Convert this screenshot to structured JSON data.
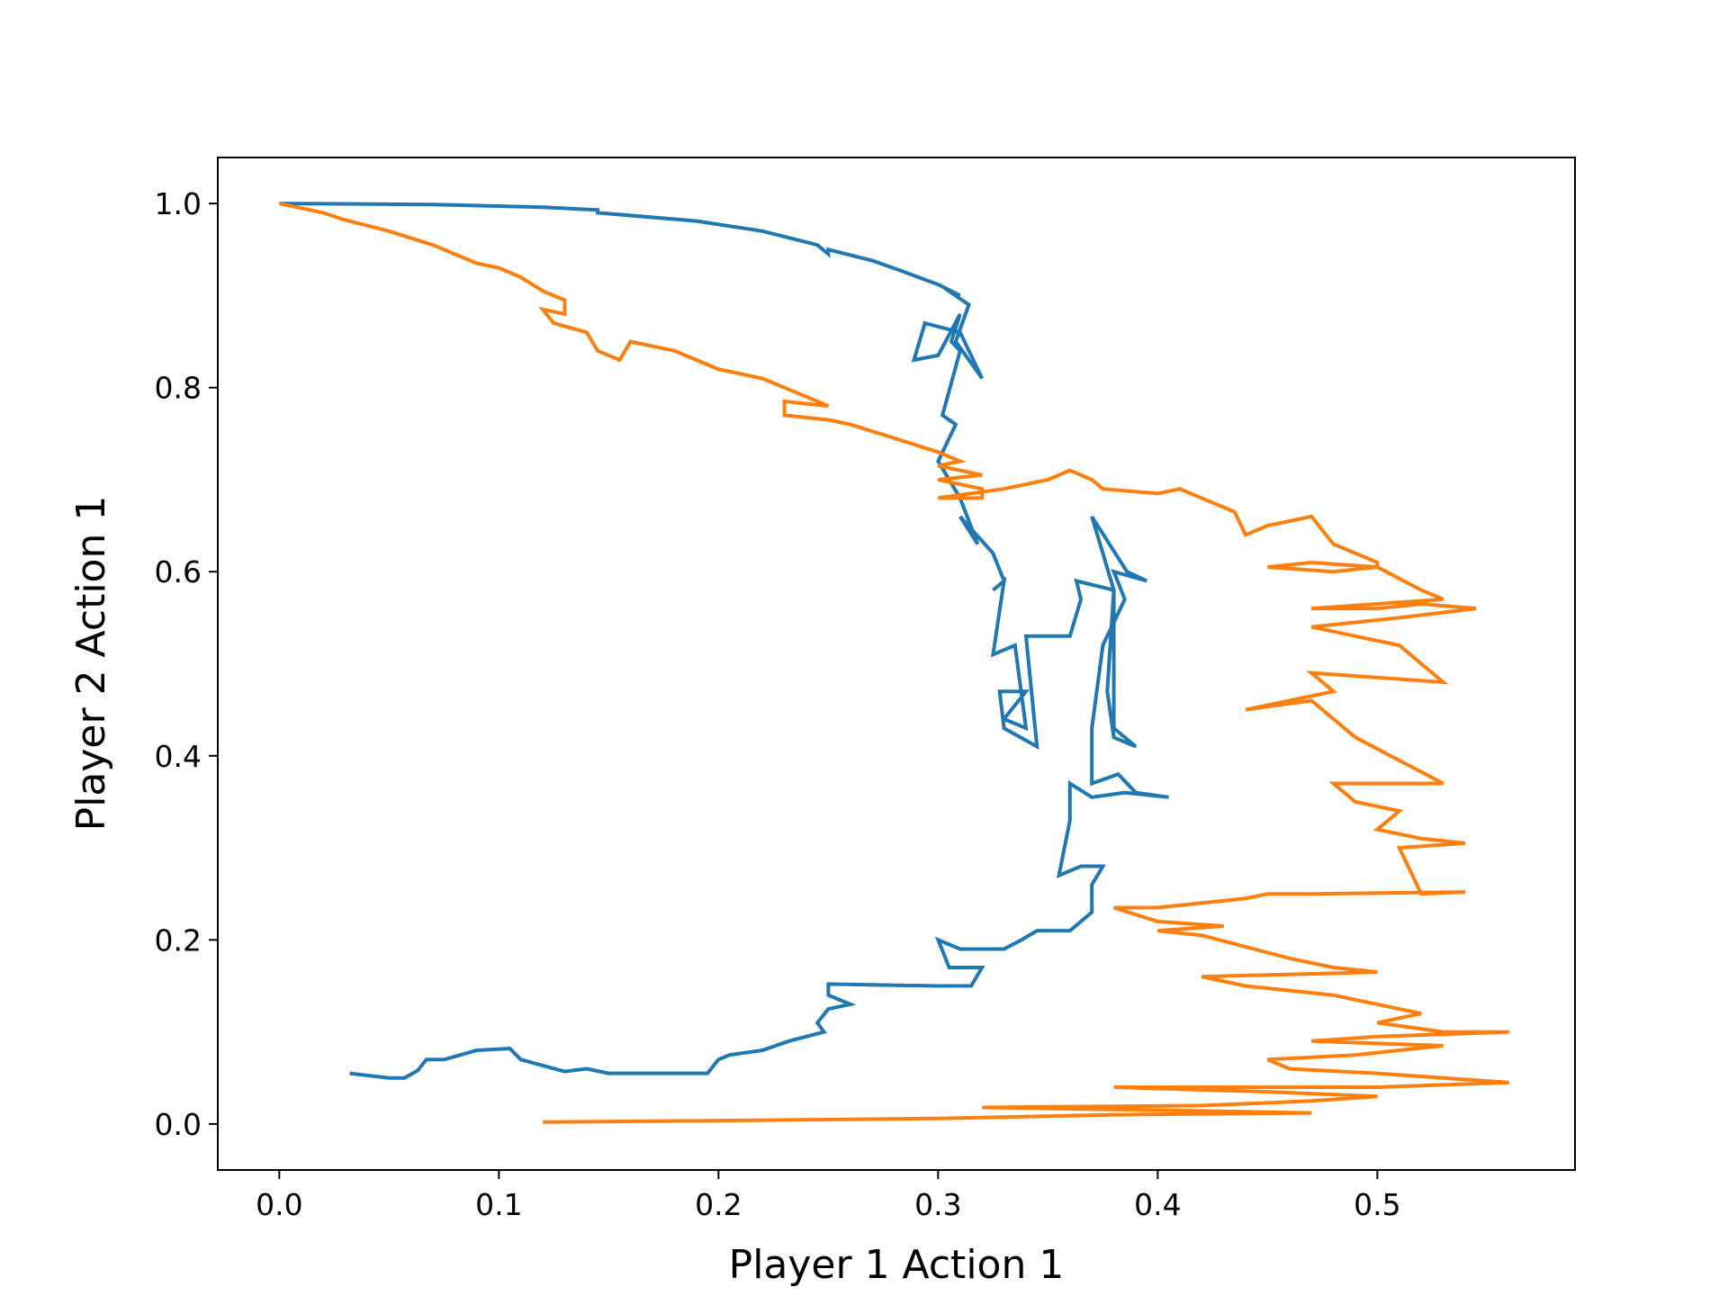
{
  "chart_data": {
    "type": "line",
    "xlabel": "Player 1 Action 1",
    "ylabel": "Player 2 Action 1",
    "xlim": [
      -0.028,
      0.59
    ],
    "ylim": [
      -0.05,
      1.05
    ],
    "xticks": [
      "0.0",
      "0.1",
      "0.2",
      "0.3",
      "0.4",
      "0.5"
    ],
    "xtick_values": [
      0.0,
      0.1,
      0.2,
      0.3,
      0.4,
      0.5
    ],
    "yticks": [
      "0.0",
      "0.2",
      "0.4",
      "0.6",
      "0.8",
      "1.0"
    ],
    "ytick_values": [
      0.0,
      0.2,
      0.4,
      0.6,
      0.8,
      1.0
    ],
    "grid": false,
    "legend": "none",
    "series": [
      {
        "color": "#1f77b4",
        "points": [
          [
            0.0,
            1.0
          ],
          [
            0.07,
            0.999
          ],
          [
            0.12,
            0.996
          ],
          [
            0.145,
            0.993
          ],
          [
            0.145,
            0.99
          ],
          [
            0.19,
            0.981
          ],
          [
            0.22,
            0.97
          ],
          [
            0.245,
            0.955
          ],
          [
            0.25,
            0.945
          ],
          [
            0.25,
            0.95
          ],
          [
            0.27,
            0.938
          ],
          [
            0.283,
            0.927
          ],
          [
            0.3,
            0.912
          ],
          [
            0.31,
            0.9
          ],
          [
            0.303,
            0.908
          ],
          [
            0.314,
            0.89
          ],
          [
            0.308,
            0.85
          ],
          [
            0.32,
            0.81
          ],
          [
            0.31,
            0.86
          ],
          [
            0.294,
            0.87
          ],
          [
            0.289,
            0.83
          ],
          [
            0.3,
            0.835
          ],
          [
            0.31,
            0.88
          ],
          [
            0.306,
            0.85
          ],
          [
            0.31,
            0.84
          ],
          [
            0.302,
            0.77
          ],
          [
            0.308,
            0.76
          ],
          [
            0.3,
            0.72
          ],
          [
            0.31,
            0.68
          ],
          [
            0.318,
            0.63
          ],
          [
            0.31,
            0.66
          ],
          [
            0.325,
            0.62
          ],
          [
            0.33,
            0.59
          ],
          [
            0.325,
            0.58
          ],
          [
            0.33,
            0.59
          ],
          [
            0.325,
            0.51
          ],
          [
            0.335,
            0.52
          ],
          [
            0.34,
            0.43
          ],
          [
            0.33,
            0.44
          ],
          [
            0.34,
            0.47
          ],
          [
            0.328,
            0.47
          ],
          [
            0.33,
            0.43
          ],
          [
            0.345,
            0.41
          ],
          [
            0.34,
            0.53
          ],
          [
            0.36,
            0.53
          ],
          [
            0.365,
            0.57
          ],
          [
            0.363,
            0.59
          ],
          [
            0.38,
            0.58
          ],
          [
            0.377,
            0.47
          ],
          [
            0.38,
            0.42
          ],
          [
            0.39,
            0.41
          ],
          [
            0.38,
            0.43
          ],
          [
            0.38,
            0.5
          ],
          [
            0.38,
            0.54
          ],
          [
            0.38,
            0.58
          ],
          [
            0.37,
            0.66
          ],
          [
            0.386,
            0.6
          ],
          [
            0.395,
            0.59
          ],
          [
            0.38,
            0.6
          ],
          [
            0.385,
            0.57
          ],
          [
            0.375,
            0.52
          ],
          [
            0.37,
            0.43
          ],
          [
            0.37,
            0.37
          ],
          [
            0.382,
            0.38
          ],
          [
            0.39,
            0.36
          ],
          [
            0.405,
            0.355
          ],
          [
            0.385,
            0.36
          ],
          [
            0.37,
            0.355
          ],
          [
            0.36,
            0.37
          ],
          [
            0.36,
            0.33
          ],
          [
            0.355,
            0.27
          ],
          [
            0.365,
            0.28
          ],
          [
            0.375,
            0.28
          ],
          [
            0.37,
            0.26
          ],
          [
            0.37,
            0.23
          ],
          [
            0.36,
            0.21
          ],
          [
            0.345,
            0.21
          ],
          [
            0.338,
            0.2
          ],
          [
            0.33,
            0.19
          ],
          [
            0.31,
            0.19
          ],
          [
            0.3,
            0.2
          ],
          [
            0.305,
            0.17
          ],
          [
            0.32,
            0.17
          ],
          [
            0.315,
            0.15
          ],
          [
            0.3,
            0.15
          ],
          [
            0.25,
            0.152
          ],
          [
            0.25,
            0.14
          ],
          [
            0.26,
            0.13
          ],
          [
            0.25,
            0.125
          ],
          [
            0.245,
            0.11
          ],
          [
            0.248,
            0.1
          ],
          [
            0.232,
            0.09
          ],
          [
            0.22,
            0.08
          ],
          [
            0.205,
            0.075
          ],
          [
            0.2,
            0.07
          ],
          [
            0.195,
            0.055
          ],
          [
            0.15,
            0.055
          ],
          [
            0.14,
            0.06
          ],
          [
            0.13,
            0.057
          ],
          [
            0.11,
            0.07
          ],
          [
            0.105,
            0.082
          ],
          [
            0.09,
            0.08
          ],
          [
            0.075,
            0.07
          ],
          [
            0.067,
            0.07
          ],
          [
            0.063,
            0.058
          ],
          [
            0.057,
            0.05
          ],
          [
            0.05,
            0.05
          ],
          [
            0.032,
            0.055
          ]
        ]
      },
      {
        "color": "#ff7f0e",
        "points": [
          [
            0.0,
            1.0
          ],
          [
            0.02,
            0.99
          ],
          [
            0.03,
            0.982
          ],
          [
            0.05,
            0.97
          ],
          [
            0.07,
            0.955
          ],
          [
            0.08,
            0.945
          ],
          [
            0.09,
            0.935
          ],
          [
            0.1,
            0.93
          ],
          [
            0.11,
            0.92
          ],
          [
            0.12,
            0.905
          ],
          [
            0.13,
            0.895
          ],
          [
            0.13,
            0.88
          ],
          [
            0.12,
            0.885
          ],
          [
            0.125,
            0.87
          ],
          [
            0.14,
            0.86
          ],
          [
            0.145,
            0.84
          ],
          [
            0.155,
            0.83
          ],
          [
            0.16,
            0.85
          ],
          [
            0.18,
            0.84
          ],
          [
            0.19,
            0.83
          ],
          [
            0.2,
            0.82
          ],
          [
            0.22,
            0.81
          ],
          [
            0.23,
            0.8
          ],
          [
            0.25,
            0.78
          ],
          [
            0.23,
            0.785
          ],
          [
            0.23,
            0.77
          ],
          [
            0.25,
            0.765
          ],
          [
            0.26,
            0.76
          ],
          [
            0.28,
            0.745
          ],
          [
            0.3,
            0.73
          ],
          [
            0.31,
            0.72
          ],
          [
            0.3,
            0.715
          ],
          [
            0.31,
            0.71
          ],
          [
            0.32,
            0.705
          ],
          [
            0.3,
            0.7
          ],
          [
            0.32,
            0.69
          ],
          [
            0.32,
            0.68
          ],
          [
            0.3,
            0.68
          ],
          [
            0.33,
            0.69
          ],
          [
            0.35,
            0.7
          ],
          [
            0.36,
            0.71
          ],
          [
            0.37,
            0.7
          ],
          [
            0.375,
            0.69
          ],
          [
            0.4,
            0.685
          ],
          [
            0.41,
            0.69
          ],
          [
            0.435,
            0.665
          ],
          [
            0.44,
            0.64
          ],
          [
            0.45,
            0.65
          ],
          [
            0.47,
            0.66
          ],
          [
            0.48,
            0.63
          ],
          [
            0.5,
            0.61
          ],
          [
            0.5,
            0.605
          ],
          [
            0.48,
            0.6
          ],
          [
            0.45,
            0.605
          ],
          [
            0.47,
            0.61
          ],
          [
            0.5,
            0.605
          ],
          [
            0.52,
            0.58
          ],
          [
            0.53,
            0.57
          ],
          [
            0.5,
            0.565
          ],
          [
            0.47,
            0.56
          ],
          [
            0.5,
            0.56
          ],
          [
            0.52,
            0.565
          ],
          [
            0.545,
            0.56
          ],
          [
            0.51,
            0.55
          ],
          [
            0.47,
            0.54
          ],
          [
            0.49,
            0.53
          ],
          [
            0.51,
            0.52
          ],
          [
            0.52,
            0.5
          ],
          [
            0.53,
            0.48
          ],
          [
            0.47,
            0.49
          ],
          [
            0.48,
            0.47
          ],
          [
            0.46,
            0.46
          ],
          [
            0.44,
            0.45
          ],
          [
            0.47,
            0.46
          ],
          [
            0.49,
            0.42
          ],
          [
            0.53,
            0.37
          ],
          [
            0.48,
            0.37
          ],
          [
            0.49,
            0.35
          ],
          [
            0.51,
            0.34
          ],
          [
            0.5,
            0.32
          ],
          [
            0.52,
            0.31
          ],
          [
            0.54,
            0.305
          ],
          [
            0.51,
            0.3
          ],
          [
            0.52,
            0.25
          ],
          [
            0.54,
            0.252
          ],
          [
            0.47,
            0.25
          ],
          [
            0.45,
            0.25
          ],
          [
            0.44,
            0.245
          ],
          [
            0.42,
            0.24
          ],
          [
            0.4,
            0.235
          ],
          [
            0.38,
            0.235
          ],
          [
            0.4,
            0.22
          ],
          [
            0.43,
            0.215
          ],
          [
            0.4,
            0.21
          ],
          [
            0.42,
            0.205
          ],
          [
            0.46,
            0.18
          ],
          [
            0.48,
            0.17
          ],
          [
            0.5,
            0.165
          ],
          [
            0.42,
            0.16
          ],
          [
            0.44,
            0.15
          ],
          [
            0.48,
            0.14
          ],
          [
            0.5,
            0.13
          ],
          [
            0.52,
            0.12
          ],
          [
            0.5,
            0.11
          ],
          [
            0.53,
            0.1
          ],
          [
            0.56,
            0.1
          ],
          [
            0.5,
            0.095
          ],
          [
            0.47,
            0.09
          ],
          [
            0.53,
            0.085
          ],
          [
            0.49,
            0.075
          ],
          [
            0.45,
            0.07
          ],
          [
            0.46,
            0.06
          ],
          [
            0.5,
            0.055
          ],
          [
            0.53,
            0.05
          ],
          [
            0.56,
            0.045
          ],
          [
            0.5,
            0.04
          ],
          [
            0.38,
            0.04
          ],
          [
            0.45,
            0.035
          ],
          [
            0.5,
            0.03
          ],
          [
            0.47,
            0.025
          ],
          [
            0.42,
            0.02
          ],
          [
            0.32,
            0.018
          ],
          [
            0.4,
            0.015
          ],
          [
            0.47,
            0.012
          ],
          [
            0.38,
            0.01
          ],
          [
            0.3,
            0.006
          ],
          [
            0.17,
            0.003
          ],
          [
            0.12,
            0.002
          ]
        ]
      }
    ]
  }
}
